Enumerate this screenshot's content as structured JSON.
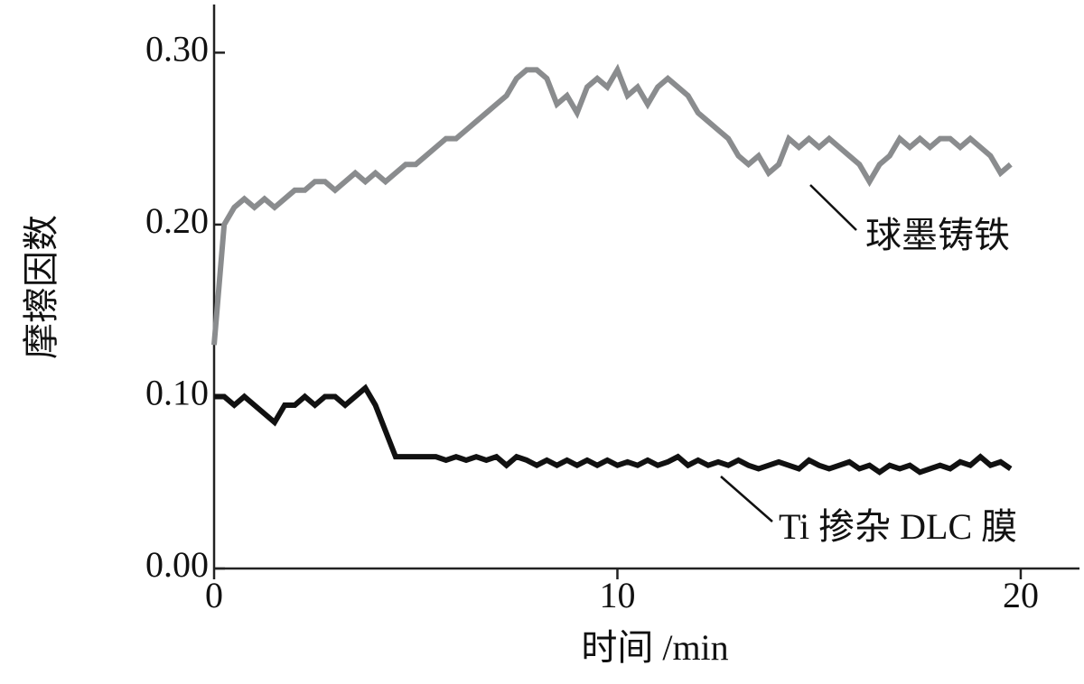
{
  "chart_data": {
    "type": "line",
    "x_label": "时间 /min",
    "y_label": "摩擦因数",
    "xlim": [
      0,
      21.3
    ],
    "ylim": [
      0,
      0.328
    ],
    "xticks": [
      0,
      10,
      20
    ],
    "yticks": [
      {
        "value": 0,
        "label": "0.00"
      },
      {
        "value": 0.1,
        "label": "0.10"
      },
      {
        "value": 0.2,
        "label": "0.20"
      },
      {
        "value": 0.3,
        "label": "0.30"
      }
    ],
    "x": [
      0,
      0.25,
      0.5,
      0.75,
      1,
      1.25,
      1.5,
      1.75,
      2,
      2.25,
      2.5,
      2.75,
      3,
      3.25,
      3.5,
      3.75,
      4,
      4.25,
      4.5,
      4.75,
      5,
      5.25,
      5.5,
      5.75,
      6,
      6.25,
      6.5,
      6.75,
      7,
      7.25,
      7.5,
      7.75,
      8,
      8.25,
      8.5,
      8.75,
      9,
      9.25,
      9.5,
      9.75,
      10,
      10.25,
      10.5,
      10.75,
      11,
      11.25,
      11.5,
      11.75,
      12,
      12.25,
      12.5,
      12.75,
      13,
      13.25,
      13.5,
      13.75,
      14,
      14.25,
      14.5,
      14.75,
      15,
      15.25,
      15.5,
      15.75,
      16,
      16.25,
      16.5,
      16.75,
      17,
      17.25,
      17.5,
      17.75,
      18,
      18.25,
      18.5,
      18.75,
      19,
      19.25,
      19.5,
      19.75
    ],
    "series": [
      {
        "name": "球墨铸铁",
        "color": "#8a8c8e",
        "values": [
          0.13,
          0.2,
          0.21,
          0.215,
          0.21,
          0.215,
          0.21,
          0.215,
          0.22,
          0.22,
          0.225,
          0.225,
          0.22,
          0.225,
          0.23,
          0.225,
          0.23,
          0.225,
          0.23,
          0.235,
          0.235,
          0.24,
          0.245,
          0.25,
          0.25,
          0.255,
          0.26,
          0.265,
          0.27,
          0.275,
          0.285,
          0.29,
          0.29,
          0.285,
          0.27,
          0.275,
          0.265,
          0.28,
          0.285,
          0.28,
          0.29,
          0.275,
          0.28,
          0.27,
          0.28,
          0.285,
          0.28,
          0.275,
          0.265,
          0.26,
          0.255,
          0.25,
          0.24,
          0.235,
          0.24,
          0.23,
          0.235,
          0.25,
          0.245,
          0.25,
          0.245,
          0.25,
          0.245,
          0.24,
          0.235,
          0.225,
          0.235,
          0.24,
          0.25,
          0.245,
          0.25,
          0.245,
          0.25,
          0.25,
          0.245,
          0.25,
          0.245,
          0.24,
          0.23,
          0.235
        ]
      },
      {
        "name": "Ti 掺杂 DLC 膜",
        "color": "#111111",
        "values": [
          0.1,
          0.1,
          0.095,
          0.1,
          0.095,
          0.09,
          0.085,
          0.095,
          0.095,
          0.1,
          0.095,
          0.1,
          0.1,
          0.095,
          0.1,
          0.105,
          0.095,
          0.08,
          0.065,
          0.065,
          0.065,
          0.065,
          0.065,
          0.063,
          0.065,
          0.063,
          0.065,
          0.063,
          0.065,
          0.06,
          0.065,
          0.063,
          0.06,
          0.063,
          0.06,
          0.063,
          0.06,
          0.063,
          0.06,
          0.063,
          0.06,
          0.062,
          0.06,
          0.063,
          0.06,
          0.062,
          0.065,
          0.06,
          0.063,
          0.06,
          0.062,
          0.06,
          0.063,
          0.06,
          0.058,
          0.06,
          0.062,
          0.06,
          0.058,
          0.063,
          0.06,
          0.058,
          0.06,
          0.062,
          0.058,
          0.06,
          0.056,
          0.06,
          0.058,
          0.06,
          0.056,
          0.058,
          0.06,
          0.058,
          0.062,
          0.06,
          0.065,
          0.06,
          0.062,
          0.058
        ]
      }
    ]
  }
}
